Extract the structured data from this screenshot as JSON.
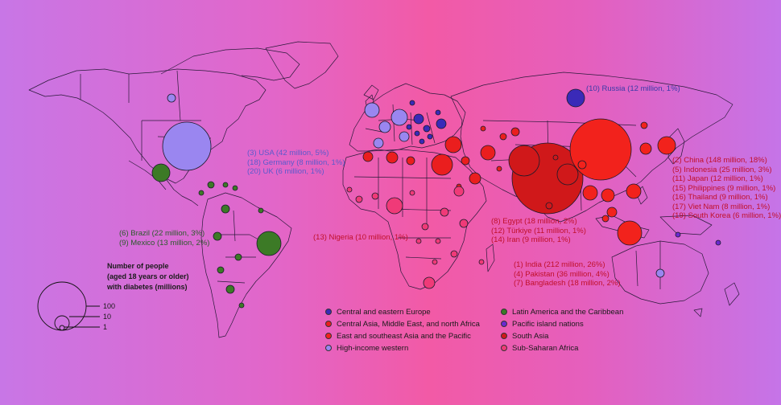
{
  "colors": {
    "central_eastern_europe": "#3a2ab8",
    "cameena": "#ea1e1e",
    "east_se_asia_pacific": "#f2221c",
    "high_income_western": "#9a86f0",
    "latin_america_caribbean": "#3c7a26",
    "pacific_islands": "#6a2ad0",
    "south_asia": "#d0181a",
    "sub_saharan_africa": "#f03a78",
    "label_blue": "#3a3aa8",
    "label_green": "#2c5a2c",
    "label_red": "#c0102a",
    "label_grey_blue": "#5a5acc"
  },
  "labels": {
    "russia": "(10) Russia (12 million, 1%)",
    "high_income": [
      "(3) USA (42 million, 5%)",
      "(18) Germany (8 million, 1%)",
      "(20) UK (6 million, 1%)"
    ],
    "latam": [
      "(6) Brazil (22 million, 3%)",
      "(9) Mexico (13 million, 2%)"
    ],
    "nigeria": "(13) Nigeria (10 million, 1%)",
    "cameena": [
      "(8) Egypt (18 million, 2%)",
      "(12) Türkiye (11 million, 1%)",
      "(14) Iran (9 million, 1%)"
    ],
    "south_asia": [
      "(1) India (212 million, 26%)",
      "(4) Pakistan (36 million, 4%)",
      "(7) Bangladesh (18 million, 2%)"
    ],
    "east_asia": [
      "(2) China (148 million, 18%)",
      "(5) Indonesia (25 million, 3%)",
      "(11) Japan (12 million, 1%)",
      "(15) Philippines (9 million, 1%)",
      "(16) Thailand (9 million, 1%)",
      "(17) Viet Nam (8 million, 1%)",
      "(19) South Korea (6 million, 1%)"
    ]
  },
  "size_legend": {
    "title": [
      "Number of people",
      "(aged 18 years or older)",
      "with diabetes (millions)"
    ],
    "values": [
      "100",
      "10",
      "1"
    ]
  },
  "legend": [
    {
      "label": "Central and eastern Europe",
      "color": "#3a2ab8"
    },
    {
      "label": "Latin America and the Caribbean",
      "color": "#3c7a26"
    },
    {
      "label": "Central Asia, Middle East, and north Africa",
      "color": "#ea1e1e"
    },
    {
      "label": "Pacific island nations",
      "color": "#6a2ad0"
    },
    {
      "label": "East and southeast Asia and the Pacific",
      "color": "#f2221c"
    },
    {
      "label": "South Asia",
      "color": "#d0181a"
    },
    {
      "label": "High-income western",
      "color": "#9a86f0"
    },
    {
      "label": "Sub-Saharan Africa",
      "color": "#f03a78"
    }
  ]
}
